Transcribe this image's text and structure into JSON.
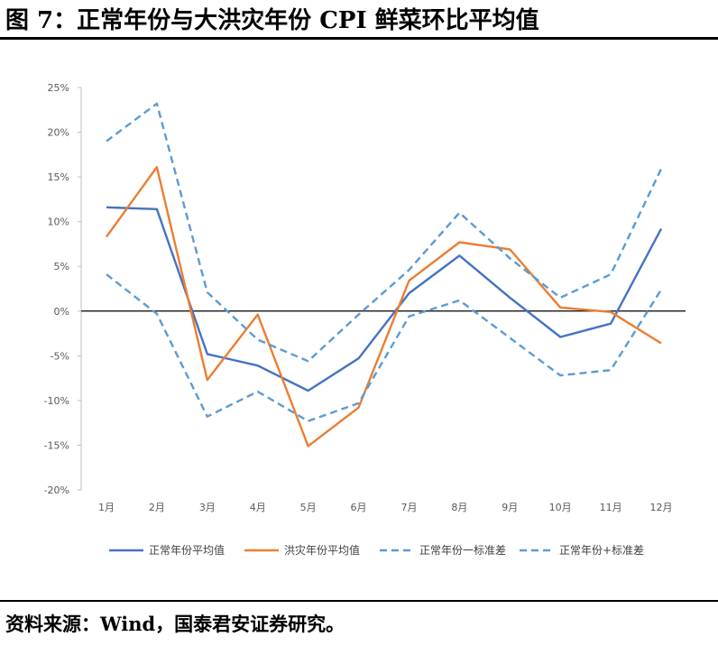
{
  "title": "图 7：正常年份与大洪灾年份 CPI 鲜菜环比平均值",
  "source": "资料来源：Wind，国泰君安证券研究。",
  "chart_data": {
    "type": "line",
    "categories": [
      "1月",
      "2月",
      "3月",
      "4月",
      "5月",
      "6月",
      "7月",
      "8月",
      "9月",
      "10月",
      "11月",
      "12月"
    ],
    "y_ticks": [
      "25%",
      "20%",
      "15%",
      "10%",
      "5%",
      "0%",
      "-5%",
      "-10%",
      "-15%",
      "-20%"
    ],
    "ylim": [
      -20,
      25
    ],
    "grid": false,
    "legend_position": "bottom",
    "series": [
      {
        "name": "正常年份平均值",
        "color": "#4472C4",
        "dash": "solid",
        "values": [
          11.6,
          11.4,
          -4.8,
          -6.1,
          -8.9,
          -5.3,
          2.0,
          6.2,
          1.5,
          -2.9,
          -1.4,
          9.2
        ]
      },
      {
        "name": "洪灾年份平均值",
        "color": "#ED7D31",
        "dash": "solid",
        "values": [
          8.3,
          16.1,
          -7.7,
          -0.4,
          -15.1,
          -10.8,
          3.4,
          7.7,
          6.9,
          0.4,
          -0.1,
          -3.6
        ]
      },
      {
        "name": "正常年份一标准差",
        "color": "#5B9BD5",
        "dash": "dashed",
        "values": [
          4.1,
          -0.3,
          -11.8,
          -9.0,
          -12.3,
          -10.3,
          -0.6,
          1.2,
          -3.0,
          -7.2,
          -6.6,
          2.4
        ]
      },
      {
        "name": "正常年份+标准差",
        "color": "#5B9BD5",
        "dash": "dashed",
        "values": [
          19.0,
          23.2,
          2.1,
          -3.2,
          -5.6,
          -0.4,
          4.6,
          11.0,
          5.9,
          1.5,
          4.1,
          15.9
        ]
      }
    ]
  }
}
